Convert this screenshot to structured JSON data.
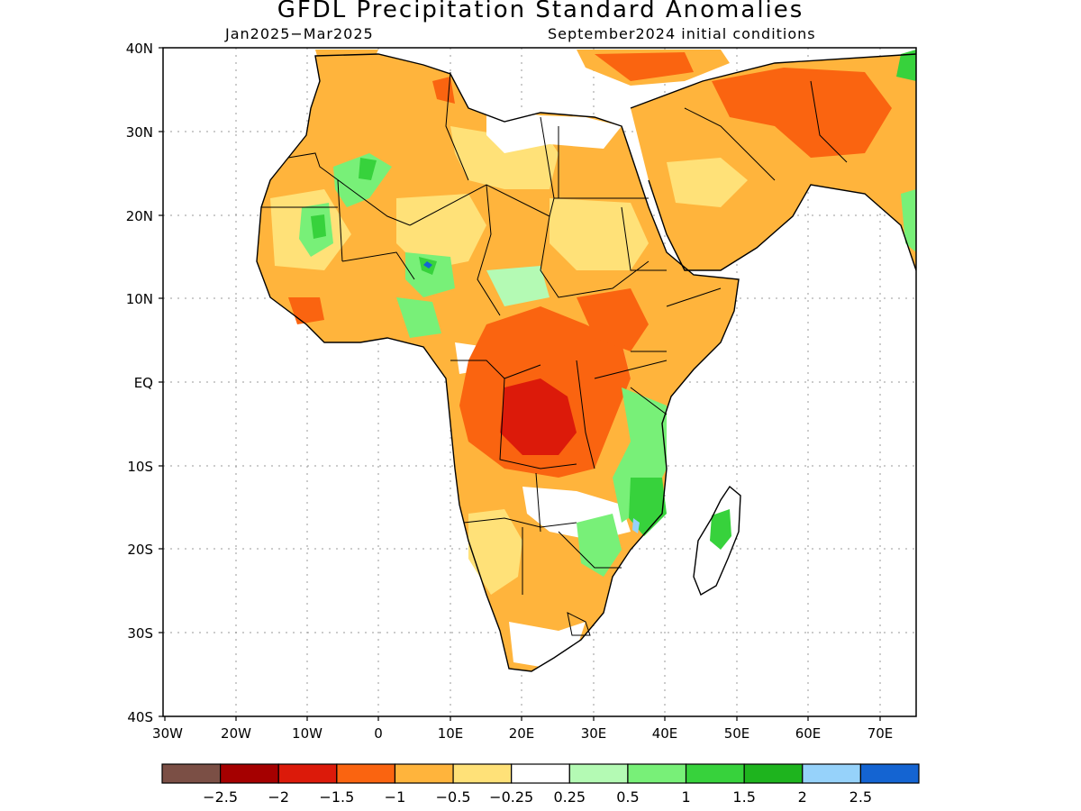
{
  "title": "GFDL Precipitation Standard Anomalies",
  "subtitle_left": "Jan2025−Mar2025",
  "subtitle_right": "September2024 initial conditions",
  "lat_ticks": [
    "40N",
    "30N",
    "20N",
    "10N",
    "EQ",
    "10S",
    "20S",
    "30S",
    "40S"
  ],
  "lon_ticks": [
    "30W",
    "20W",
    "10W",
    "0",
    "10E",
    "20E",
    "30E",
    "40E",
    "50E",
    "60E",
    "70E"
  ],
  "colorbar": {
    "colors": [
      "#7b4f45",
      "#a50000",
      "#dc1a0a",
      "#fa6410",
      "#ffb43c",
      "#ffe178",
      "#ffffff",
      "#b4fab4",
      "#78f078",
      "#37d23c",
      "#1eb41e",
      "#96d2fa",
      "#1464d2"
    ],
    "labels": [
      "−2.5",
      "−2",
      "−1.5",
      "−1",
      "−0.5",
      "−0.25",
      "0.25",
      "0.5",
      "1",
      "1.5",
      "2",
      "2.5"
    ]
  },
  "colors": {
    "dark_red": "#dc1a0a",
    "orange": "#fa6410",
    "light_orange": "#ffb43c",
    "yellow": "#ffe178",
    "light_green": "#78f078",
    "green": "#37d23c",
    "blue": "#1464d2",
    "border": "#000000"
  }
}
